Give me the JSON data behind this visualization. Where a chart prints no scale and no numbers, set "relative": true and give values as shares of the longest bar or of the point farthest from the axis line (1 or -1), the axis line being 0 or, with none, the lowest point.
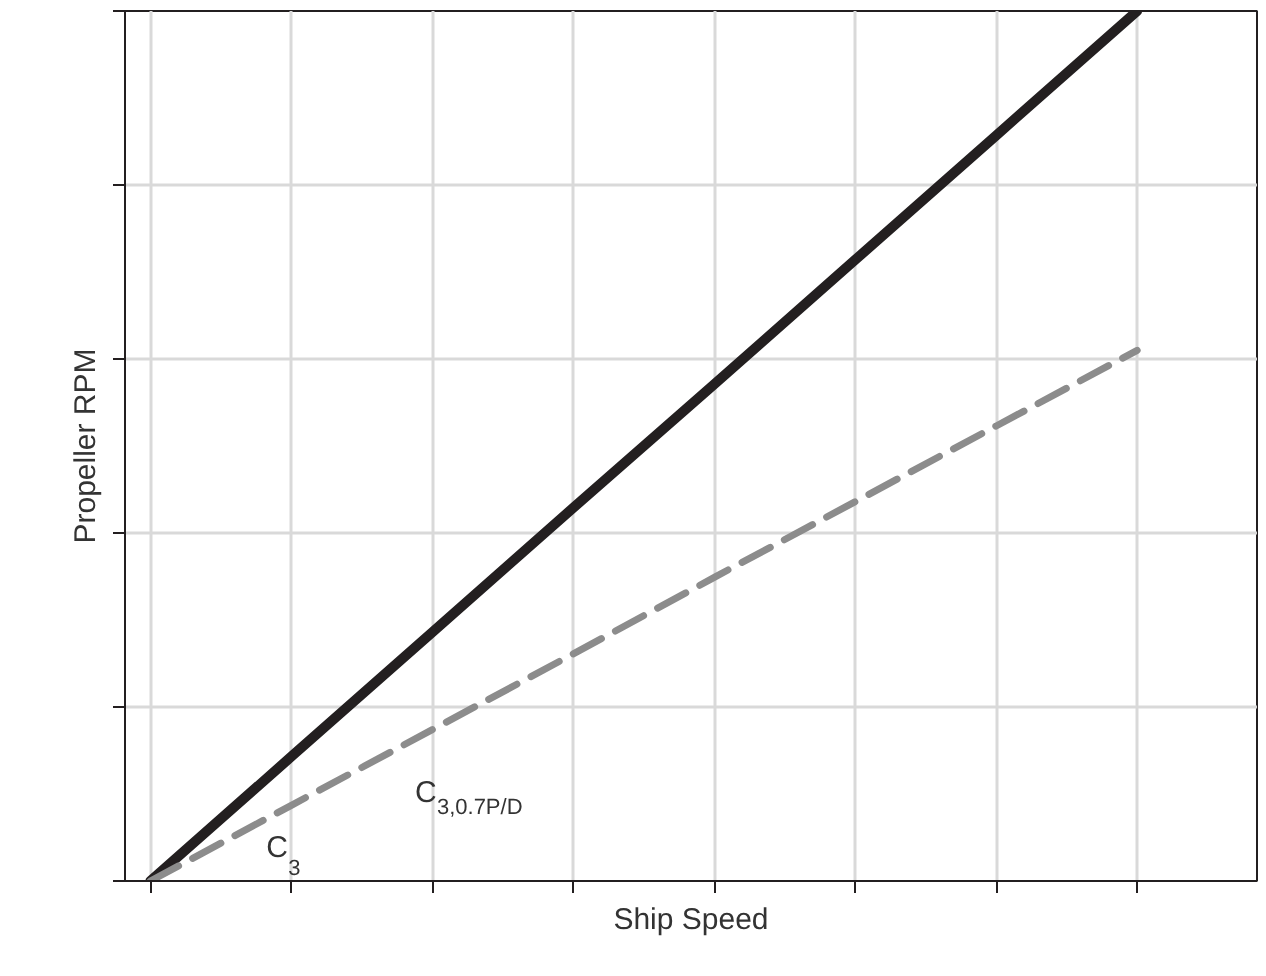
{
  "chart_data": {
    "type": "line",
    "relative": true,
    "xlabel": "Ship Speed",
    "ylabel": "Propeller RPM",
    "categories": [
      null,
      null,
      null,
      null,
      null,
      null,
      null,
      null
    ],
    "series": [
      {
        "color": "#231f20",
        "line_style": "solid",
        "values": [
          0,
          0.143,
          0.286,
          0.429,
          0.571,
          0.714,
          0.857,
          1
        ]
      },
      {
        "color": "#8c8c8c",
        "line_style": "dashed",
        "values": [
          0,
          0.087,
          0.174,
          0.261,
          0.349,
          0.436,
          0.523,
          0.61
        ]
      }
    ],
    "annotations": [
      "C$_{3}$",
      "C$_{3,0.7P/D}$"
    ],
    "grid": true,
    "marker": "none"
  }
}
